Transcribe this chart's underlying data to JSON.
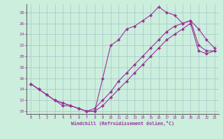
{
  "xlabel": "Windchill (Refroidissement éolien,°C)",
  "bg_color": "#cceedd",
  "line_color": "#993399",
  "grid_color": "#aacccc",
  "axis_color": "#666666",
  "xmin": -0.5,
  "xmax": 23.5,
  "ymin": 9.5,
  "ymax": 29.5,
  "yticks": [
    10,
    12,
    14,
    16,
    18,
    20,
    22,
    24,
    26,
    28
  ],
  "xticks": [
    0,
    1,
    2,
    3,
    4,
    5,
    6,
    7,
    8,
    9,
    10,
    11,
    12,
    13,
    14,
    15,
    16,
    17,
    18,
    19,
    20,
    21,
    22,
    23
  ],
  "line1_x": [
    0,
    1,
    2,
    3,
    4,
    5,
    6,
    7,
    8,
    9,
    10,
    11,
    12,
    13,
    14,
    15,
    16,
    17,
    18,
    19,
    20,
    21,
    22,
    23
  ],
  "line1_y": [
    15,
    14,
    13,
    12,
    11,
    11,
    10.5,
    10,
    10,
    16,
    22,
    23,
    25,
    25.5,
    26.5,
    27.5,
    29,
    28,
    27.5,
    26,
    26.5,
    25,
    23,
    21.5
  ],
  "line2_x": [
    0,
    1,
    2,
    3,
    4,
    5,
    6,
    7,
    8,
    9,
    10,
    11,
    12,
    13,
    14,
    15,
    16,
    17,
    18,
    19,
    20,
    21,
    22,
    23
  ],
  "line2_y": [
    15,
    14,
    13,
    12,
    11.5,
    11,
    10.5,
    10,
    10,
    11,
    12.5,
    14,
    15.5,
    17,
    18.5,
    20,
    21.5,
    23,
    24,
    25,
    26,
    21,
    20.5,
    21
  ],
  "line3_x": [
    0,
    1,
    2,
    3,
    4,
    5,
    6,
    7,
    8,
    9,
    10,
    11,
    12,
    13,
    14,
    15,
    16,
    17,
    18,
    19,
    20,
    21,
    22,
    23
  ],
  "line3_y": [
    15,
    14,
    13,
    12,
    11.5,
    11,
    10.5,
    10,
    10.5,
    12,
    13.5,
    15.5,
    17,
    18.5,
    20,
    21.5,
    23,
    24.5,
    25.5,
    26,
    26.5,
    22,
    21,
    21
  ]
}
